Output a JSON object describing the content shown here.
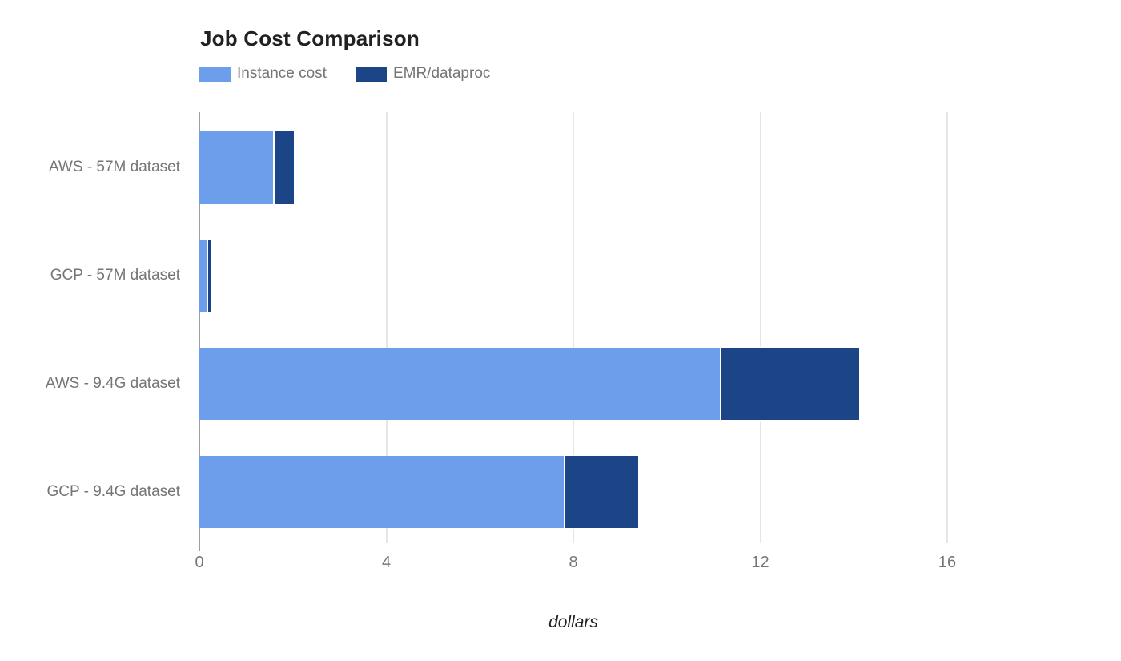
{
  "colors": {
    "instance_cost": "#6d9eeb",
    "emr_dataproc": "#1c4587",
    "gridline": "#e6e6e6",
    "baseline": "#9e9e9e",
    "muted_text": "#757575",
    "title_text": "#212121"
  },
  "chart_data": {
    "type": "bar",
    "orientation": "horizontal",
    "stacked": true,
    "title": "Job Cost Comparison",
    "xlabel": "dollars",
    "ylabel": "",
    "categories": [
      "AWS - 57M dataset",
      "GCP - 57M dataset",
      "AWS - 9.4G dataset",
      "GCP - 9.4G dataset"
    ],
    "series": [
      {
        "name": "Instance cost",
        "color": "#6d9eeb",
        "values": [
          1.58,
          0.17,
          11.14,
          7.8
        ]
      },
      {
        "name": "EMR/dataproc",
        "color": "#1c4587",
        "values": [
          0.41,
          0.04,
          2.95,
          1.56
        ]
      }
    ],
    "totals": [
      1.99,
      0.21,
      14.09,
      9.36
    ],
    "xlim": [
      0,
      17.8
    ],
    "xticks": [
      0,
      4,
      8,
      12,
      16
    ],
    "grid": true,
    "legend_position": "top-left"
  }
}
